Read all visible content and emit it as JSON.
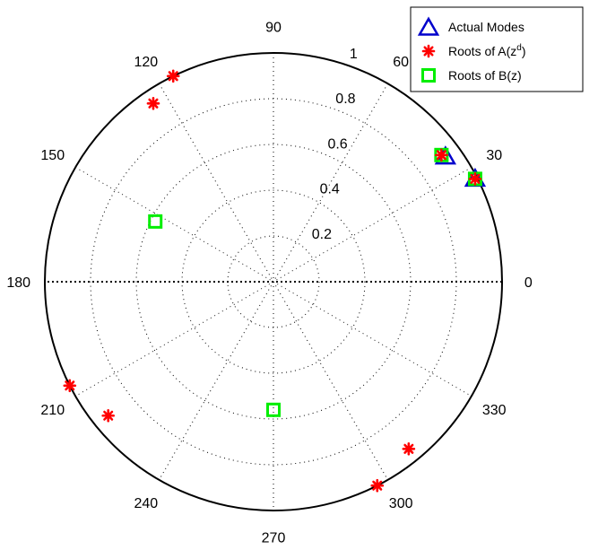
{
  "chart_data": {
    "type": "scatter",
    "coordinate_system": "polar",
    "theta_unit": "degrees",
    "r_range": [
      0,
      1
    ],
    "grid": true,
    "radius_ticks": [
      0.2,
      0.4,
      0.6,
      0.8,
      1
    ],
    "radius_tick_labels": [
      "0.2",
      "0.4",
      "0.6",
      "0.8",
      "1"
    ],
    "angle_ticks": [
      0,
      30,
      60,
      90,
      120,
      150,
      180,
      210,
      240,
      270,
      300,
      330
    ],
    "angle_tick_labels": [
      "0",
      "30",
      "60",
      "90",
      "120",
      "150",
      "180",
      "210",
      "240",
      "270",
      "300",
      "330"
    ],
    "legend_position": "top-right",
    "series": [
      {
        "name": "Actual Modes",
        "marker": "triangle",
        "color": "#0000cc",
        "points": [
          {
            "theta": 27,
            "r": 0.99
          },
          {
            "theta": 36,
            "r": 0.93
          }
        ]
      },
      {
        "name": "Roots of A(z^d)",
        "legend_text": "Roots of A(z",
        "legend_superscript": "d",
        "legend_suffix": ")",
        "marker": "asterisk",
        "color": "#ff0000",
        "points": [
          {
            "theta": 27,
            "r": 0.99
          },
          {
            "theta": 37,
            "r": 0.92
          },
          {
            "theta": 116,
            "r": 1.0
          },
          {
            "theta": 124,
            "r": 0.94
          },
          {
            "theta": 207,
            "r": 1.0
          },
          {
            "theta": 219,
            "r": 0.93
          },
          {
            "theta": 297,
            "r": 1.0
          },
          {
            "theta": 309,
            "r": 0.94
          }
        ]
      },
      {
        "name": "Roots of B(z)",
        "marker": "square",
        "color": "#00ee00",
        "points": [
          {
            "theta": 27,
            "r": 0.99
          },
          {
            "theta": 37,
            "r": 0.92
          },
          {
            "theta": 153,
            "r": 0.58
          },
          {
            "theta": 270,
            "r": 0.56
          }
        ]
      }
    ]
  },
  "colors": {
    "grid": "#000000",
    "axes_frame": "#000000",
    "background": "#ffffff"
  }
}
